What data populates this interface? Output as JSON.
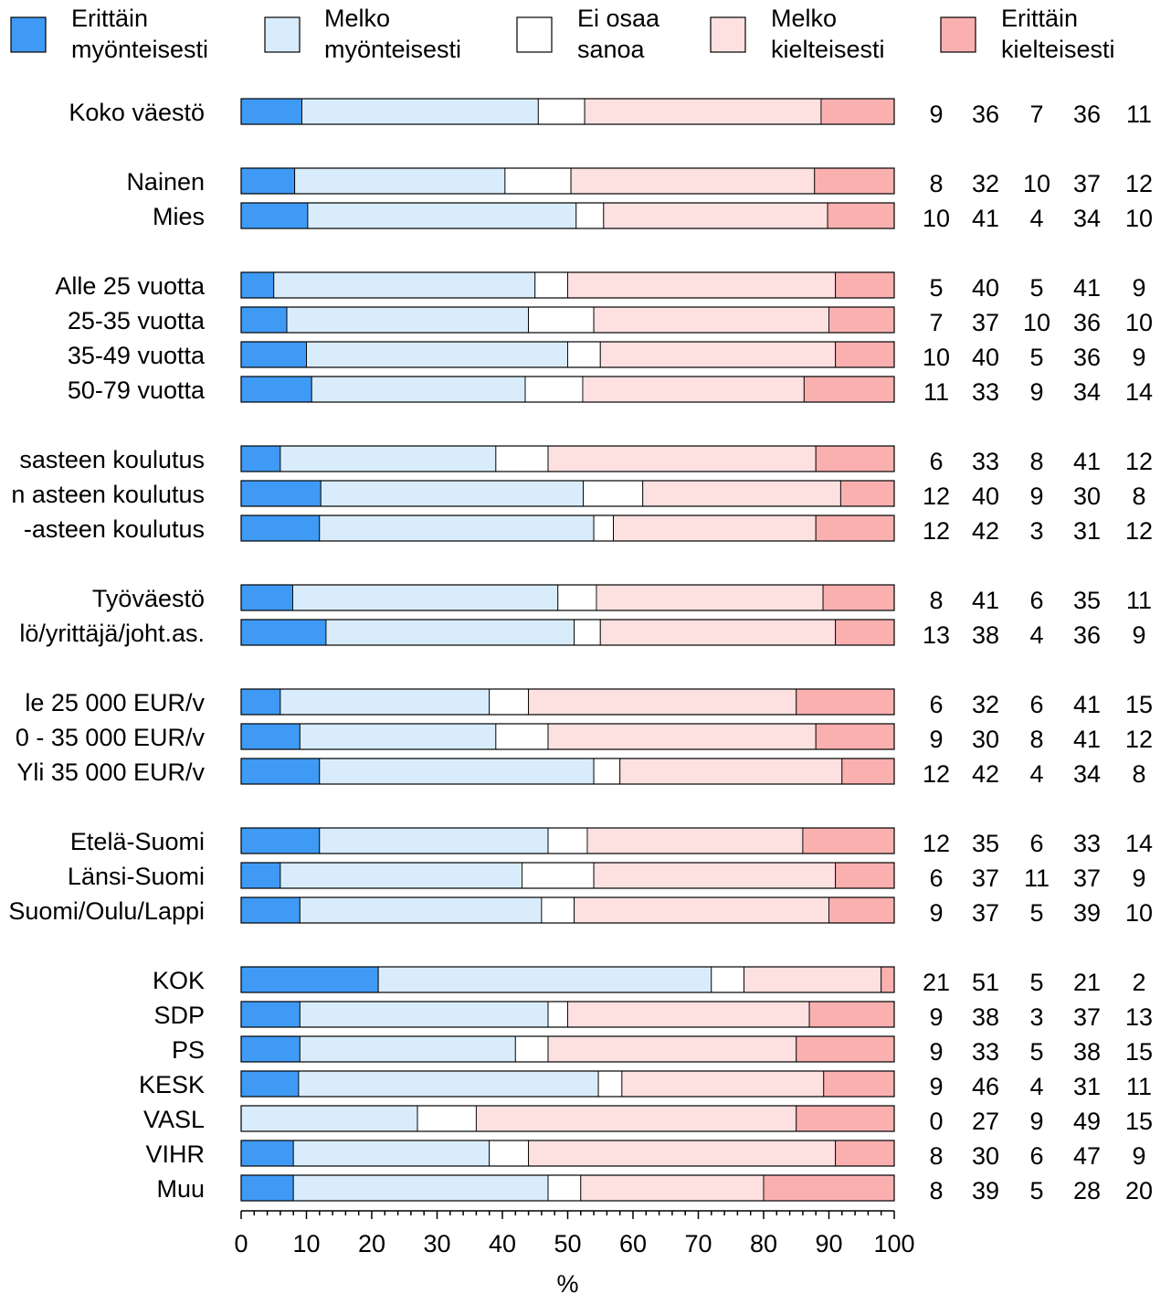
{
  "chart_data": {
    "type": "bar",
    "stacked": true,
    "orientation": "horizontal",
    "xlabel": "%",
    "xlim": [
      0,
      100
    ],
    "xticks": [
      0,
      10,
      20,
      30,
      40,
      50,
      60,
      70,
      80,
      90,
      100
    ],
    "series": [
      {
        "name": "Erittäin myönteisesti",
        "name_lines": [
          "Erittäin",
          "myönteisesti"
        ],
        "color": "#3f9af5"
      },
      {
        "name": "Melko myönteisesti",
        "name_lines": [
          "Melko",
          "myönteisesti"
        ],
        "color": "#d9ecfb"
      },
      {
        "name": "Ei osaa sanoa",
        "name_lines": [
          "Ei osaa",
          "sanoa"
        ],
        "color": "#ffffff"
      },
      {
        "name": "Melko kielteisesti",
        "name_lines": [
          "Melko",
          "kielteisesti"
        ],
        "color": "#fde0e0"
      },
      {
        "name": "Erittäin kielteisesti",
        "name_lines": [
          "Erittäin",
          "kielteisesti"
        ],
        "color": "#fbb0b0"
      }
    ],
    "groups": [
      {
        "rows": [
          {
            "label": "Koko väestö",
            "values": [
              9.3,
              36.2,
              7.1,
              36.2,
              11.2
            ],
            "labels": [
              "9",
              "36",
              "7",
              "36",
              "11"
            ]
          }
        ]
      },
      {
        "rows": [
          {
            "label": "Nainen",
            "values": [
              8.2,
              32.2,
              10.1,
              37.3,
              12.2
            ],
            "labels": [
              "8",
              "32",
              "10",
              "37",
              "12"
            ]
          },
          {
            "label": "Mies",
            "values": [
              10.2,
              41.1,
              4.2,
              34.3,
              10.2
            ],
            "labels": [
              "10",
              "41",
              "4",
              "34",
              "10"
            ]
          }
        ]
      },
      {
        "rows": [
          {
            "label": "Alle 25 vuotta",
            "values": [
              5,
              40,
              5,
              41,
              9
            ],
            "labels": [
              "5",
              "40",
              "5",
              "41",
              "9"
            ]
          },
          {
            "label": "25-35 vuotta",
            "values": [
              7,
              37,
              10,
              36,
              10
            ],
            "labels": [
              "7",
              "37",
              "10",
              "36",
              "10"
            ]
          },
          {
            "label": "35-49 vuotta",
            "values": [
              10,
              40,
              5,
              36,
              9
            ],
            "labels": [
              "10",
              "40",
              "5",
              "36",
              "9"
            ]
          },
          {
            "label": "50-79 vuotta",
            "values": [
              10.8,
              32.7,
              8.8,
              33.9,
              13.8
            ],
            "labels": [
              "11",
              "33",
              "9",
              "34",
              "14"
            ]
          }
        ]
      },
      {
        "rows": [
          {
            "label": "sasteen koulutus",
            "values": [
              6,
              33,
              8,
              41,
              12
            ],
            "labels": [
              "6",
              "33",
              "8",
              "41",
              "12"
            ]
          },
          {
            "label": "n asteen koulutus",
            "values": [
              12.2,
              40.2,
              9.1,
              30.3,
              8.2
            ],
            "labels": [
              "12",
              "40",
              "9",
              "30",
              "8"
            ]
          },
          {
            "label": "-asteen koulutus",
            "values": [
              12,
              42,
              3,
              31,
              12
            ],
            "labels": [
              "12",
              "42",
              "3",
              "31",
              "12"
            ]
          }
        ]
      },
      {
        "rows": [
          {
            "label": "Työväestö",
            "values": [
              7.9,
              40.6,
              5.9,
              34.7,
              10.9
            ],
            "labels": [
              "8",
              "41",
              "6",
              "35",
              "11"
            ]
          },
          {
            "label": "lö/yrittäjä/joht.as.",
            "values": [
              13,
              38,
              4,
              36,
              9
            ],
            "labels": [
              "13",
              "38",
              "4",
              "36",
              "9"
            ]
          }
        ]
      },
      {
        "rows": [
          {
            "label": "le 25 000 EUR/v",
            "values": [
              6,
              32,
              6,
              41,
              15
            ],
            "labels": [
              "6",
              "32",
              "6",
              "41",
              "15"
            ]
          },
          {
            "label": "0 - 35 000 EUR/v",
            "values": [
              9,
              30,
              8,
              41,
              12
            ],
            "labels": [
              "9",
              "30",
              "8",
              "41",
              "12"
            ]
          },
          {
            "label": "Yli 35 000 EUR/v",
            "values": [
              12,
              42,
              4,
              34,
              8
            ],
            "labels": [
              "12",
              "42",
              "4",
              "34",
              "8"
            ]
          }
        ]
      },
      {
        "rows": [
          {
            "label": "Etelä-Suomi",
            "values": [
              12,
              35,
              6,
              33,
              14
            ],
            "labels": [
              "12",
              "35",
              "6",
              "33",
              "14"
            ]
          },
          {
            "label": "Länsi-Suomi",
            "values": [
              6,
              37,
              11,
              37,
              9
            ],
            "labels": [
              "6",
              "37",
              "11",
              "37",
              "9"
            ]
          },
          {
            "label": "Suomi/Oulu/Lappi",
            "values": [
              9,
              37,
              5,
              39,
              10
            ],
            "labels": [
              "9",
              "37",
              "5",
              "39",
              "10"
            ]
          }
        ]
      },
      {
        "rows": [
          {
            "label": "KOK",
            "values": [
              21,
              51,
              5,
              21,
              2
            ],
            "labels": [
              "21",
              "51",
              "5",
              "21",
              "2"
            ]
          },
          {
            "label": "SDP",
            "values": [
              9,
              38,
              3,
              37,
              13
            ],
            "labels": [
              "9",
              "38",
              "3",
              "37",
              "13"
            ]
          },
          {
            "label": "PS",
            "values": [
              9,
              33,
              5,
              38,
              15
            ],
            "labels": [
              "9",
              "33",
              "5",
              "38",
              "15"
            ]
          },
          {
            "label": "KESK",
            "values": [
              8.8,
              45.9,
              3.6,
              30.9,
              10.8
            ],
            "labels": [
              "9",
              "46",
              "4",
              "31",
              "11"
            ]
          },
          {
            "label": "VASL",
            "values": [
              0,
              27,
              9,
              49,
              15
            ],
            "labels": [
              "0",
              "27",
              "9",
              "49",
              "15"
            ]
          },
          {
            "label": "VIHR",
            "values": [
              8,
              30,
              6,
              47,
              9
            ],
            "labels": [
              "8",
              "30",
              "6",
              "47",
              "9"
            ]
          },
          {
            "label": "Muu",
            "values": [
              8,
              39,
              5,
              28,
              20
            ],
            "labels": [
              "8",
              "39",
              "5",
              "28",
              "20"
            ]
          }
        ]
      }
    ]
  }
}
